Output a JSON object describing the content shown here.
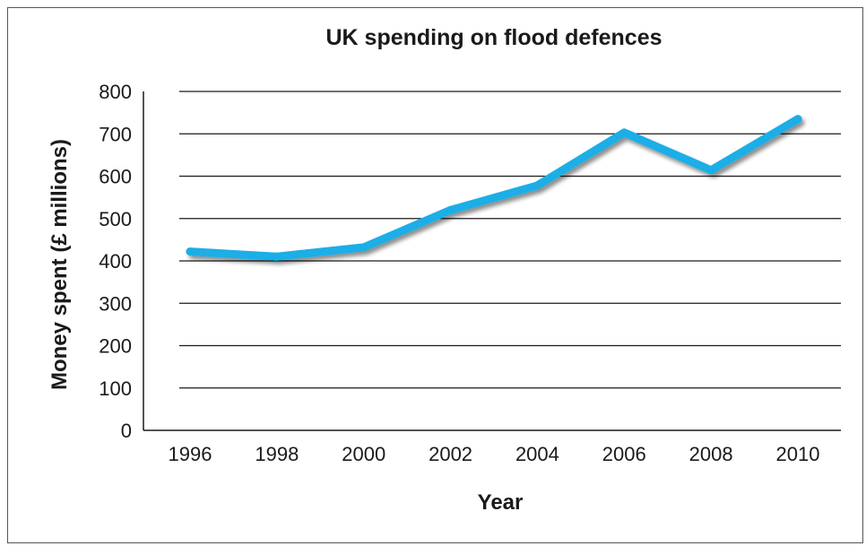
{
  "chart_data": {
    "type": "line",
    "title": "UK spending on flood defences",
    "xlabel": "Year",
    "ylabel": "Money spent (£ millions)",
    "categories": [
      "1996",
      "1998",
      "2000",
      "2002",
      "2004",
      "2006",
      "2008",
      "2010"
    ],
    "series": [
      {
        "values": [
          422,
          410,
          432,
          520,
          578,
          703,
          614,
          735
        ],
        "color": "#1aaee6"
      }
    ],
    "ylim": [
      0,
      800
    ],
    "yticks": [
      "0",
      "100",
      "200",
      "300",
      "400",
      "500",
      "600",
      "700",
      "800"
    ],
    "grid": "horizontal",
    "legend": "none"
  }
}
